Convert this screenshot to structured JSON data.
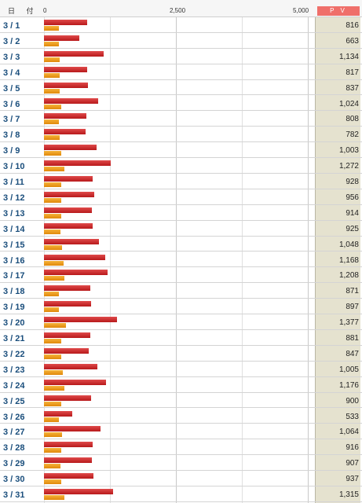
{
  "header": {
    "date_label": "日 付",
    "pv_label": "P V",
    "ticks": [
      "0",
      "2,500",
      "5,000"
    ]
  },
  "colors": {
    "series1": "#c0191c",
    "series2": "#eea020",
    "pv_column": "#e5e2cf",
    "pv_header": "#ef6f6a",
    "date_text": "#1a4e7c"
  },
  "axis_max": 5000,
  "rows": [
    {
      "date": "3 / 1",
      "pv": "816",
      "v1": 816,
      "v2": 290
    },
    {
      "date": "3 / 2",
      "pv": "663",
      "v1": 663,
      "v2": 290
    },
    {
      "date": "3 / 3",
      "pv": "1,134",
      "v1": 1134,
      "v2": 300
    },
    {
      "date": "3 / 4",
      "pv": "817",
      "v1": 817,
      "v2": 300
    },
    {
      "date": "3 / 5",
      "pv": "837",
      "v1": 837,
      "v2": 300
    },
    {
      "date": "3 / 6",
      "pv": "1,024",
      "v1": 1024,
      "v2": 320
    },
    {
      "date": "3 / 7",
      "pv": "808",
      "v1": 808,
      "v2": 290
    },
    {
      "date": "3 / 8",
      "pv": "782",
      "v1": 782,
      "v2": 300
    },
    {
      "date": "3 / 9",
      "pv": "1,003",
      "v1": 1003,
      "v2": 320
    },
    {
      "date": "3 / 10",
      "pv": "1,272",
      "v1": 1272,
      "v2": 380
    },
    {
      "date": "3 / 11",
      "pv": "928",
      "v1": 928,
      "v2": 320
    },
    {
      "date": "3 / 12",
      "pv": "956",
      "v1": 956,
      "v2": 320
    },
    {
      "date": "3 / 13",
      "pv": "914",
      "v1": 914,
      "v2": 320
    },
    {
      "date": "3 / 14",
      "pv": "925",
      "v1": 925,
      "v2": 310
    },
    {
      "date": "3 / 15",
      "pv": "1,048",
      "v1": 1048,
      "v2": 340
    },
    {
      "date": "3 / 16",
      "pv": "1,168",
      "v1": 1168,
      "v2": 370
    },
    {
      "date": "3 / 17",
      "pv": "1,208",
      "v1": 1208,
      "v2": 380
    },
    {
      "date": "3 / 18",
      "pv": "871",
      "v1": 871,
      "v2": 290
    },
    {
      "date": "3 / 19",
      "pv": "897",
      "v1": 897,
      "v2": 290
    },
    {
      "date": "3 / 20",
      "pv": "1,377",
      "v1": 1377,
      "v2": 420
    },
    {
      "date": "3 / 21",
      "pv": "881",
      "v1": 881,
      "v2": 320
    },
    {
      "date": "3 / 22",
      "pv": "847",
      "v1": 847,
      "v2": 320
    },
    {
      "date": "3 / 23",
      "pv": "1,005",
      "v1": 1005,
      "v2": 350
    },
    {
      "date": "3 / 24",
      "pv": "1,176",
      "v1": 1176,
      "v2": 380
    },
    {
      "date": "3 / 25",
      "pv": "900",
      "v1": 900,
      "v2": 320
    },
    {
      "date": "3 / 26",
      "pv": "533",
      "v1": 533,
      "v2": 290
    },
    {
      "date": "3 / 27",
      "pv": "1,064",
      "v1": 1064,
      "v2": 340
    },
    {
      "date": "3 / 28",
      "pv": "916",
      "v1": 916,
      "v2": 320
    },
    {
      "date": "3 / 29",
      "pv": "907",
      "v1": 907,
      "v2": 310
    },
    {
      "date": "3 / 30",
      "pv": "937",
      "v1": 937,
      "v2": 330
    },
    {
      "date": "3 / 31",
      "pv": "1,315",
      "v1": 1315,
      "v2": 390
    }
  ]
}
